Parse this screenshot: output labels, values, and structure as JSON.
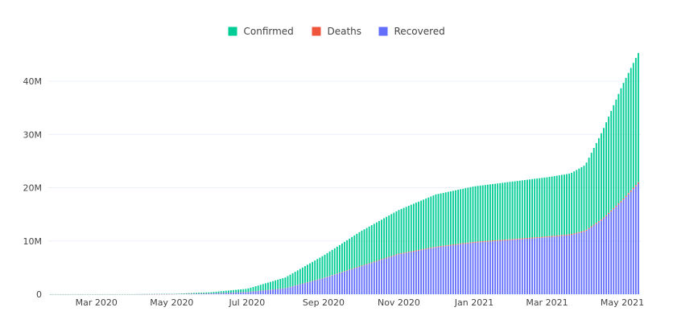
{
  "chart_data": {
    "type": "bar",
    "stacking": "stack",
    "title": "",
    "xlabel": "",
    "ylabel": "",
    "x_start": "2020-01-22",
    "x_end": "2021-05-15",
    "x_step_days": 2,
    "x_range": [
      "2020-01-22",
      "2021-05-16"
    ],
    "ylim": [
      0,
      48000000
    ],
    "y_ticks": [
      {
        "value": 0,
        "label": "0"
      },
      {
        "value": 10000000,
        "label": "10M"
      },
      {
        "value": 20000000,
        "label": "20M"
      },
      {
        "value": 30000000,
        "label": "30M"
      },
      {
        "value": 40000000,
        "label": "40M"
      }
    ],
    "x_ticks": [
      {
        "date": "2020-03-01",
        "label": "Mar 2020"
      },
      {
        "date": "2020-05-01",
        "label": "May 2020"
      },
      {
        "date": "2020-07-01",
        "label": "Jul 2020"
      },
      {
        "date": "2020-09-01",
        "label": "Sep 2020"
      },
      {
        "date": "2020-11-01",
        "label": "Nov 2020"
      },
      {
        "date": "2021-01-01",
        "label": "Jan 2021"
      },
      {
        "date": "2021-03-01",
        "label": "Mar 2021"
      },
      {
        "date": "2021-05-01",
        "label": "May 2021"
      }
    ],
    "series_order": [
      "Recovered",
      "Deaths",
      "Confirmed"
    ],
    "series": [
      {
        "name": "Confirmed",
        "color": "#00cc96",
        "anchors": [
          [
            "2020-01-22",
            0
          ],
          [
            "2020-04-01",
            2000
          ],
          [
            "2020-05-01",
            40000
          ],
          [
            "2020-06-01",
            200000
          ],
          [
            "2020-07-01",
            600000
          ],
          [
            "2020-08-01",
            2000000
          ],
          [
            "2020-09-01",
            4200000
          ],
          [
            "2020-10-01",
            6500000
          ],
          [
            "2020-11-01",
            8200000
          ],
          [
            "2020-12-01",
            9800000
          ],
          [
            "2021-01-01",
            10400000
          ],
          [
            "2021-02-01",
            10800000
          ],
          [
            "2021-03-01",
            11100000
          ],
          [
            "2021-03-20",
            11400000
          ],
          [
            "2021-04-01",
            12300000
          ],
          [
            "2021-04-15",
            16500000
          ],
          [
            "2021-05-01",
            21500000
          ],
          [
            "2021-05-15",
            24500000
          ]
        ]
      },
      {
        "name": "Deaths",
        "color": "#ef553b",
        "anchors": [
          [
            "2020-01-22",
            0
          ],
          [
            "2020-05-01",
            1000
          ],
          [
            "2020-07-01",
            17000
          ],
          [
            "2020-09-01",
            66000
          ],
          [
            "2020-11-01",
            123000
          ],
          [
            "2021-01-01",
            149000
          ],
          [
            "2021-03-01",
            157000
          ],
          [
            "2021-04-01",
            162000
          ],
          [
            "2021-05-01",
            211000
          ],
          [
            "2021-05-15",
            270000
          ]
        ]
      },
      {
        "name": "Recovered",
        "color": "#636efa",
        "anchors": [
          [
            "2020-01-22",
            0
          ],
          [
            "2020-04-01",
            0
          ],
          [
            "2020-05-01",
            20000
          ],
          [
            "2020-06-01",
            150000
          ],
          [
            "2020-07-01",
            400000
          ],
          [
            "2020-08-01",
            1100000
          ],
          [
            "2020-09-01",
            3000000
          ],
          [
            "2020-10-01",
            5200000
          ],
          [
            "2020-11-01",
            7500000
          ],
          [
            "2020-12-01",
            8800000
          ],
          [
            "2021-01-01",
            9700000
          ],
          [
            "2021-02-01",
            10200000
          ],
          [
            "2021-03-01",
            10700000
          ],
          [
            "2021-03-20",
            11100000
          ],
          [
            "2021-04-01",
            11800000
          ],
          [
            "2021-04-15",
            14000000
          ],
          [
            "2021-05-01",
            17500000
          ],
          [
            "2021-05-15",
            21000000
          ]
        ]
      }
    ],
    "legend": {
      "position": "top-center",
      "items": [
        {
          "label": "Confirmed",
          "color": "#00cc96"
        },
        {
          "label": "Deaths",
          "color": "#ef553b"
        },
        {
          "label": "Recovered",
          "color": "#636efa"
        }
      ]
    }
  }
}
